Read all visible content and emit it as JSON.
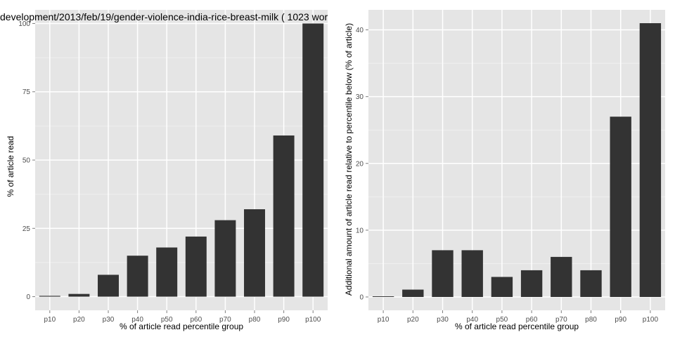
{
  "chart_data": [
    {
      "type": "bar",
      "title": "development/2013/feb/19/gender-violence-india-rice-breast-milk ( 1023 wor",
      "xlabel": "% of article read percentile group",
      "ylabel": "% of article read",
      "categories": [
        "p10",
        "p20",
        "p30",
        "p40",
        "p50",
        "p60",
        "p70",
        "p80",
        "p90",
        "p100"
      ],
      "values": [
        0.3,
        1,
        8,
        15,
        18,
        22,
        28,
        32,
        59,
        100
      ],
      "ylim": [
        -5,
        105
      ],
      "yticks": [
        0,
        25,
        50,
        75,
        100
      ],
      "bar_color": "#333333",
      "panel_color": "#e5e5e5",
      "grid": true
    },
    {
      "type": "bar",
      "title": "",
      "xlabel": "% of article read percentile group",
      "ylabel": "Additional amount of article read relative to percentile below (% of article)",
      "categories": [
        "p10",
        "p20",
        "p30",
        "p40",
        "p50",
        "p60",
        "p70",
        "p80",
        "p90",
        "p100"
      ],
      "values": [
        0.1,
        1.1,
        7,
        7,
        3,
        4,
        6,
        4,
        27,
        41
      ],
      "ylim": [
        -2,
        43
      ],
      "yticks": [
        0,
        10,
        20,
        30,
        40
      ],
      "bar_color": "#333333",
      "panel_color": "#e5e5e5",
      "grid": true
    }
  ]
}
